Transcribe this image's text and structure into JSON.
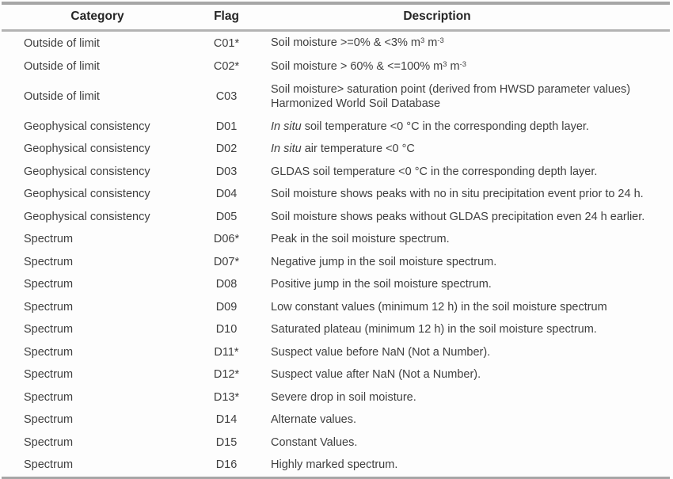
{
  "table": {
    "headers": {
      "category": "Category",
      "flag": "Flag",
      "description": "Description"
    },
    "rows": [
      {
        "category": "Outside of limit",
        "flag": "C01*",
        "description": [
          {
            "text": "Soil moisture >=0% & <3% m"
          },
          {
            "text": "3",
            "style": "sup"
          },
          {
            "text": " m"
          },
          {
            "text": "-3",
            "style": "sup"
          }
        ]
      },
      {
        "category": "Outside of limit",
        "flag": "C02*",
        "description": [
          {
            "text": "Soil moisture > 60% & <=100% m"
          },
          {
            "text": "3",
            "style": "sup"
          },
          {
            "text": " m"
          },
          {
            "text": "-3",
            "style": "sup"
          }
        ]
      },
      {
        "category": "Outside of limit",
        "flag": "C03",
        "description": [
          {
            "text": "Soil moisture> saturation point (derived from HWSD parameter values)"
          },
          {
            "style": "br"
          },
          {
            "text": "Harmonized World Soil Database"
          }
        ]
      },
      {
        "category": "Geophysical consistency",
        "flag": "D01",
        "description": [
          {
            "text": "In situ",
            "style": "italic"
          },
          {
            "text": " soil temperature <0 °C in the corresponding depth layer."
          }
        ]
      },
      {
        "category": "Geophysical consistency",
        "flag": "D02",
        "description": [
          {
            "text": "In situ",
            "style": "italic"
          },
          {
            "text": " air temperature <0 °C"
          }
        ]
      },
      {
        "category": "Geophysical consistency",
        "flag": "D03",
        "description": [
          {
            "text": "GLDAS soil temperature <0 °C in the corresponding depth layer."
          }
        ]
      },
      {
        "category": "Geophysical consistency",
        "flag": "D04",
        "description": [
          {
            "text": "Soil moisture shows peaks with no in situ precipitation event prior to 24 h."
          }
        ]
      },
      {
        "category": "Geophysical consistency",
        "flag": "D05",
        "description": [
          {
            "text": "Soil moisture shows peaks without GLDAS precipitation even 24 h earlier."
          }
        ]
      },
      {
        "category": "Spectrum",
        "flag": "D06*",
        "description": [
          {
            "text": "Peak in the soil moisture spectrum."
          }
        ]
      },
      {
        "category": "Spectrum",
        "flag": "D07*",
        "description": [
          {
            "text": "Negative jump in the soil moisture spectrum."
          }
        ]
      },
      {
        "category": "Spectrum",
        "flag": "D08",
        "description": [
          {
            "text": "Positive jump in the soil moisture spectrum."
          }
        ]
      },
      {
        "category": "Spectrum",
        "flag": "D09",
        "description": [
          {
            "text": "Low constant values (minimum 12 h) in the soil moisture spectrum"
          }
        ]
      },
      {
        "category": "Spectrum",
        "flag": "D10",
        "description": [
          {
            "text": "Saturated plateau (minimum 12 h) in the soil moisture spectrum."
          }
        ]
      },
      {
        "category": "Spectrum",
        "flag": "D11*",
        "description": [
          {
            "text": "Suspect value before NaN (Not a Number)."
          }
        ]
      },
      {
        "category": "Spectrum",
        "flag": "D12*",
        "description": [
          {
            "text": "Suspect value after NaN (Not a Number)."
          }
        ]
      },
      {
        "category": "Spectrum",
        "flag": "D13*",
        "description": [
          {
            "text": "Severe drop in soil moisture."
          }
        ]
      },
      {
        "category": "Spectrum",
        "flag": "D14",
        "description": [
          {
            "text": "Alternate values."
          }
        ]
      },
      {
        "category": "Spectrum",
        "flag": "D15",
        "description": [
          {
            "text": "Constant Values."
          }
        ]
      },
      {
        "category": "Spectrum",
        "flag": "D16",
        "description": [
          {
            "text": "Highly marked spectrum."
          }
        ]
      }
    ]
  }
}
